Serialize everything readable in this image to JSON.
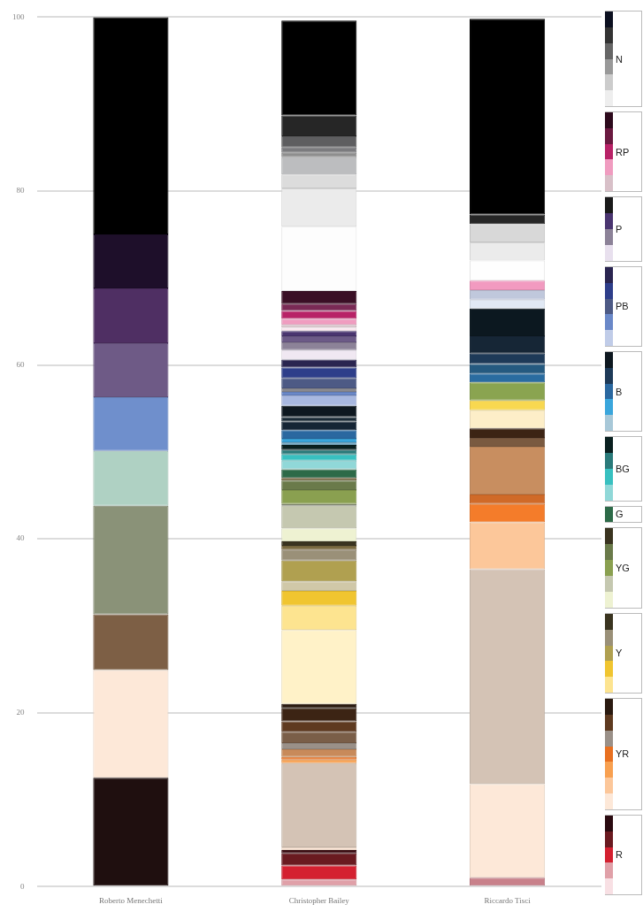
{
  "chart_data": {
    "type": "bar",
    "stacked": true,
    "categories": [
      "Roberto Menechetti",
      "Christopher Bailey",
      "Riccardo Tisci"
    ],
    "ylim": [
      0,
      100
    ],
    "yticks": [
      0,
      20,
      40,
      60,
      80,
      100
    ],
    "grid": "y",
    "annotations": [
      "N",
      "RP",
      "P",
      "PB",
      "B",
      "BG",
      "G",
      "YG",
      "Y",
      "YR",
      "R"
    ],
    "series": [
      {
        "color": "#1f0f0f",
        "values": [
          12.5,
          null,
          null
        ]
      },
      {
        "color": "#fde8d8",
        "values": [
          12.4,
          null,
          null
        ]
      },
      {
        "color": "#7d5f45",
        "values": [
          6.4,
          null,
          null
        ]
      },
      {
        "color": "#8a9278",
        "values": [
          12.5,
          null,
          null
        ]
      },
      {
        "color": "#afd1c3",
        "values": [
          6.3,
          null,
          null
        ]
      },
      {
        "color": "#6f8fcc",
        "values": [
          6.2,
          null,
          null
        ]
      },
      {
        "color": "#6e5a86",
        "values": [
          6.2,
          null,
          null
        ]
      },
      {
        "color": "#4f2f63",
        "values": [
          6.3,
          null,
          null
        ]
      },
      {
        "color": "#1e0f2a",
        "values": [
          6.2,
          null,
          null
        ]
      },
      {
        "color": "#000000",
        "values": [
          25,
          null,
          null
        ]
      },
      {
        "color": "#e0a0a8",
        "values": [
          null,
          0.8,
          null
        ]
      },
      {
        "color": "#d42030",
        "values": [
          null,
          1.6,
          null
        ]
      },
      {
        "color": "#6a1a20",
        "values": [
          null,
          1.4,
          null
        ]
      },
      {
        "color": "#3a0a10",
        "values": [
          null,
          0.4,
          null
        ]
      },
      {
        "color": "#fde8d8",
        "values": [
          null,
          0.3,
          null
        ]
      },
      {
        "color": "#d4c3b5",
        "values": [
          null,
          9.7,
          null
        ]
      },
      {
        "color": "#f8a050",
        "values": [
          null,
          0.4,
          null
        ]
      },
      {
        "color": "#e87020",
        "values": [
          null,
          0.3,
          null
        ]
      },
      {
        "color": "#c88a5a",
        "values": [
          null,
          0.9,
          null
        ]
      },
      {
        "color": "#9a9088",
        "values": [
          null,
          0.7,
          null
        ]
      },
      {
        "color": "#7a5e48",
        "values": [
          null,
          1.3,
          null
        ]
      },
      {
        "color": "#5e3a20",
        "values": [
          null,
          1.2,
          null
        ]
      },
      {
        "color": "#3c2414",
        "values": [
          null,
          1.5,
          null
        ]
      },
      {
        "color": "#2a1a10",
        "values": [
          null,
          0.5,
          null
        ]
      },
      {
        "color": "#fff2c8",
        "values": [
          null,
          8.5,
          null
        ]
      },
      {
        "color": "#fde490",
        "values": [
          null,
          2.8,
          null
        ]
      },
      {
        "color": "#f0c530",
        "values": [
          null,
          1.7,
          null
        ]
      },
      {
        "color": "#d0c8a8",
        "values": [
          null,
          1.1,
          null
        ]
      },
      {
        "color": "#b0a050",
        "values": [
          null,
          2.4,
          null
        ]
      },
      {
        "color": "#9a9078",
        "values": [
          null,
          1.2,
          null
        ]
      },
      {
        "color": "#7a6a40",
        "values": [
          null,
          0.5,
          null
        ]
      },
      {
        "color": "#3a3420",
        "values": [
          null,
          0.5,
          null
        ]
      },
      {
        "color": "#eef2d2",
        "values": [
          null,
          1.5,
          null
        ]
      },
      {
        "color": "#c5c8b0",
        "values": [
          null,
          2.6,
          null
        ]
      },
      {
        "color": "#8a9078",
        "values": [
          null,
          0.2,
          null
        ]
      },
      {
        "color": "#8aa050",
        "values": [
          null,
          1.6,
          null
        ]
      },
      {
        "color": "#6a7a4a",
        "values": [
          null,
          1.1,
          null
        ]
      },
      {
        "color": "#6a5a30",
        "values": [
          null,
          0.3,
          null
        ]
      },
      {
        "color": "#2d6a48",
        "values": [
          null,
          1.0,
          null
        ]
      },
      {
        "color": "#90d8d8",
        "values": [
          null,
          1.0,
          null
        ]
      },
      {
        "color": "#38c0c0",
        "values": [
          null,
          0.7,
          null
        ]
      },
      {
        "color": "#2a7a7a",
        "values": [
          null,
          0.5,
          null
        ]
      },
      {
        "color": "#0a2020",
        "values": [
          null,
          0.6,
          null
        ]
      },
      {
        "color": "#80b0c8",
        "values": [
          null,
          0.3,
          null
        ]
      },
      {
        "color": "#3aa6dc",
        "values": [
          null,
          0.4,
          null
        ]
      },
      {
        "color": "#2a68a0",
        "values": [
          null,
          1.0,
          null
        ]
      },
      {
        "color": "#152535",
        "values": [
          null,
          1.0,
          null
        ]
      },
      {
        "color": "#1a2a36",
        "values": [
          null,
          0.5,
          null
        ]
      },
      {
        "color": "#0e1820",
        "values": [
          null,
          1.3,
          null
        ]
      },
      {
        "color": "#a8b8e0",
        "values": [
          null,
          1.2,
          null
        ]
      },
      {
        "color": "#6a88c8",
        "values": [
          null,
          0.4,
          null
        ]
      },
      {
        "color": "#8a8a90",
        "values": [
          null,
          0.4,
          null
        ]
      },
      {
        "color": "#4d5a85",
        "values": [
          null,
          1.2,
          null
        ]
      },
      {
        "color": "#2e3e8a",
        "values": [
          null,
          1.2,
          null
        ]
      },
      {
        "color": "#2a2550",
        "values": [
          null,
          0.9,
          null
        ]
      },
      {
        "color": "#f0e8f2",
        "values": [
          null,
          1.1,
          null
        ]
      },
      {
        "color": "#8c8298",
        "values": [
          null,
          0.9,
          null
        ]
      },
      {
        "color": "#6c5a87",
        "values": [
          null,
          0.7,
          null
        ]
      },
      {
        "color": "#4a3570",
        "values": [
          null,
          0.6,
          null
        ]
      },
      {
        "color": "#fbe8f0",
        "values": [
          null,
          0.4,
          null
        ]
      },
      {
        "color": "#d8c0c8",
        "values": [
          null,
          0.3,
          null
        ]
      },
      {
        "color": "#f09cc0",
        "values": [
          null,
          0.7,
          null
        ]
      },
      {
        "color": "#b82267",
        "values": [
          null,
          0.9,
          null
        ]
      },
      {
        "color": "#7a2a55",
        "values": [
          null,
          0.8,
          null
        ]
      },
      {
        "color": "#3a0f25",
        "values": [
          null,
          1.5,
          null
        ]
      },
      {
        "color": "#fdfdfd",
        "values": [
          null,
          7.4,
          null
        ]
      },
      {
        "color": "#ebebeb",
        "values": [
          null,
          4.4,
          null
        ]
      },
      {
        "color": "#dcdcdc",
        "values": [
          null,
          1.6,
          null
        ]
      },
      {
        "color": "#bcbdbf",
        "values": [
          null,
          2.0,
          null
        ]
      },
      {
        "color": "#8e8e8e",
        "values": [
          null,
          0.5,
          null
        ]
      },
      {
        "color": "#7b7b7e",
        "values": [
          null,
          0.6,
          null
        ]
      },
      {
        "color": "#5e5e60",
        "values": [
          null,
          1.3,
          null
        ]
      },
      {
        "color": "#262626",
        "values": [
          null,
          2.4,
          null
        ]
      },
      {
        "color": "#000000",
        "values": [
          null,
          10.9,
          null
        ]
      },
      {
        "color": "#c8808a",
        "values": [
          null,
          null,
          1.0
        ]
      },
      {
        "color": "#fde8d8",
        "values": [
          null,
          null,
          10.8
        ]
      },
      {
        "color": "#d4c3b5",
        "values": [
          null,
          null,
          24.7
        ]
      },
      {
        "color": "#fcc79a",
        "values": [
          null,
          null,
          5.4
        ]
      },
      {
        "color": "#f47c2a",
        "values": [
          null,
          null,
          2.1
        ]
      },
      {
        "color": "#d06a28",
        "values": [
          null,
          null,
          1.1
        ]
      },
      {
        "color": "#c88e60",
        "values": [
          null,
          null,
          5.5
        ]
      },
      {
        "color": "#7a5a40",
        "values": [
          null,
          null,
          1.0
        ]
      },
      {
        "color": "#3c2414",
        "values": [
          null,
          null,
          1.1
        ]
      },
      {
        "color": "#fdeec8",
        "values": [
          null,
          null,
          2.1
        ]
      },
      {
        "color": "#f8d850",
        "values": [
          null,
          null,
          1.1
        ]
      },
      {
        "color": "#8aa450",
        "values": [
          null,
          null,
          2.1
        ]
      },
      {
        "color": "#2a6ca0",
        "values": [
          null,
          null,
          1.0
        ]
      },
      {
        "color": "#255a80",
        "values": [
          null,
          null,
          1.1
        ]
      },
      {
        "color": "#1e3a58",
        "values": [
          null,
          null,
          1.2
        ]
      },
      {
        "color": "#162636",
        "values": [
          null,
          null,
          2.0
        ]
      },
      {
        "color": "#0c1820",
        "values": [
          null,
          null,
          3.2
        ]
      },
      {
        "color": "#e0e8f4",
        "values": [
          null,
          null,
          1.0
        ]
      },
      {
        "color": "#c0c8dc",
        "values": [
          null,
          null,
          1.1
        ]
      },
      {
        "color": "#f29ac0",
        "values": [
          null,
          null,
          1.1
        ]
      },
      {
        "color": "#fefefe",
        "values": [
          null,
          null,
          2.3
        ]
      },
      {
        "color": "#ebebeb",
        "values": [
          null,
          null,
          2.1
        ]
      },
      {
        "color": "#d8d8d8",
        "values": [
          null,
          null,
          2.1
        ]
      },
      {
        "color": "#262626",
        "values": [
          null,
          null,
          1.1
        ]
      },
      {
        "color": "#000000",
        "values": [
          null,
          null,
          22.5
        ]
      }
    ]
  }
}
